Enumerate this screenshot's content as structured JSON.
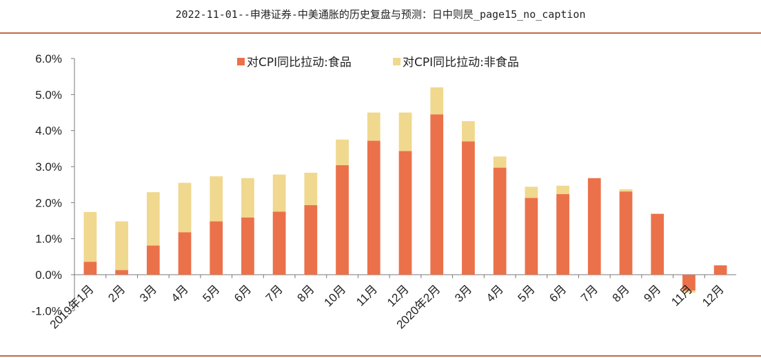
{
  "header": {
    "title": "2022-11-01--申港证券-中美通胀的历史复盘与预测：日中则昃_page15_no_caption"
  },
  "chart_data": {
    "type": "bar",
    "stacked": true,
    "categories": [
      "2019年1月",
      "2月",
      "3月",
      "4月",
      "5月",
      "6月",
      "7月",
      "8月",
      "10月",
      "11月",
      "12月",
      "2020年2月",
      "3月",
      "4月",
      "5月",
      "6月",
      "7月",
      "8月",
      "9月",
      "11月",
      "12月"
    ],
    "series": [
      {
        "name": "对CPI同比拉动:食品",
        "color": "#eb714a",
        "values": [
          0.36,
          0.13,
          0.81,
          1.18,
          1.48,
          1.59,
          1.75,
          1.93,
          3.04,
          3.72,
          3.43,
          4.45,
          3.7,
          2.97,
          2.13,
          2.24,
          2.68,
          2.31,
          1.69,
          -0.44,
          0.26
        ]
      },
      {
        "name": "对CPI同比拉动:非食品",
        "color": "#f0d88e",
        "values": [
          1.38,
          1.35,
          1.48,
          1.37,
          1.25,
          1.09,
          1.03,
          0.9,
          0.71,
          0.78,
          1.07,
          0.75,
          0.56,
          0.31,
          0.31,
          0.23,
          0.0,
          0.06,
          0.0,
          -0.06,
          0.0
        ]
      }
    ],
    "ylim": [
      -1.0,
      6.0
    ],
    "yticks": [
      "-1.0%",
      "0.0%",
      "1.0%",
      "2.0%",
      "3.0%",
      "4.0%",
      "5.0%",
      "6.0%"
    ],
    "legend_position": "top-center",
    "grid": false
  }
}
